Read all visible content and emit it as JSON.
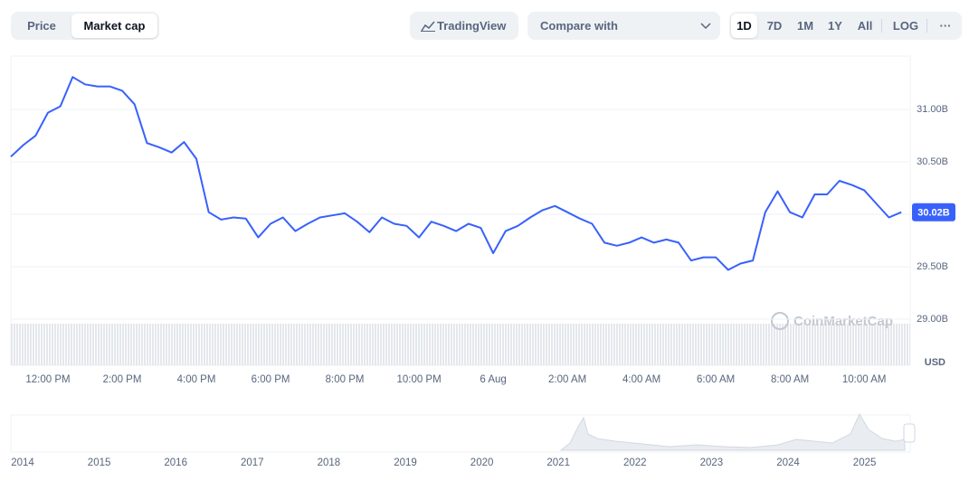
{
  "controls": {
    "tabs": [
      "Price",
      "Market cap"
    ],
    "tradingview": "TradingView",
    "compare": "Compare with",
    "ranges": [
      "1D",
      "7D",
      "1M",
      "1Y",
      "All"
    ],
    "log": "LOG",
    "more": "···"
  },
  "chart_data": {
    "type": "line",
    "color": "#3861fb",
    "values": [
      30.55,
      30.66,
      30.75,
      30.97,
      31.03,
      31.31,
      31.24,
      31.22,
      31.22,
      31.18,
      31.05,
      30.68,
      30.64,
      30.59,
      30.69,
      30.53,
      30.02,
      29.95,
      29.97,
      29.96,
      29.78,
      29.91,
      29.97,
      29.84,
      29.91,
      29.97,
      29.99,
      30.01,
      29.93,
      29.83,
      29.97,
      29.91,
      29.89,
      29.78,
      29.93,
      29.89,
      29.84,
      29.91,
      29.87,
      29.63,
      29.84,
      29.89,
      29.97,
      30.04,
      30.08,
      30.02,
      29.96,
      29.91,
      29.73,
      29.7,
      29.73,
      29.78,
      29.73,
      29.76,
      29.73,
      29.56,
      29.59,
      29.59,
      29.47,
      29.53,
      29.56,
      30.02,
      30.22,
      30.02,
      29.97,
      30.19,
      30.19,
      30.32,
      30.28,
      30.23,
      30.1,
      29.97,
      30.02
    ],
    "last_label": "30.02B",
    "xlim": [
      0,
      72.5
    ],
    "xticks": [
      {
        "value": 3,
        "label": "12:00 PM"
      },
      {
        "value": 9,
        "label": "2:00 PM"
      },
      {
        "value": 15,
        "label": "4:00 PM"
      },
      {
        "value": 21,
        "label": "6:00 PM"
      },
      {
        "value": 27,
        "label": "8:00 PM"
      },
      {
        "value": 33,
        "label": "10:00 PM"
      },
      {
        "value": 39,
        "label": "6 Aug"
      },
      {
        "value": 45,
        "label": "2:00 AM"
      },
      {
        "value": 51,
        "label": "4:00 AM"
      },
      {
        "value": 57,
        "label": "6:00 AM"
      },
      {
        "value": 63,
        "label": "8:00 AM"
      },
      {
        "value": 69,
        "label": "10:00 AM"
      }
    ],
    "ylim": [
      28.56,
      31.51
    ],
    "yticks": [
      {
        "value": 29,
        "label": "29.00B"
      },
      {
        "value": 29.5,
        "label": "29.50B"
      },
      {
        "value": 30,
        "label": "30.00B"
      },
      {
        "value": 30.5,
        "label": "30.50B"
      },
      {
        "value": 31,
        "label": "31.00B"
      }
    ],
    "y_unit": "USD",
    "grid": true,
    "watermark": "CoinMarketCap",
    "navigator_years": [
      "2014",
      "2015",
      "2016",
      "2017",
      "2018",
      "2019",
      "2020",
      "2021",
      "2022",
      "2023",
      "2024",
      "2025"
    ]
  }
}
